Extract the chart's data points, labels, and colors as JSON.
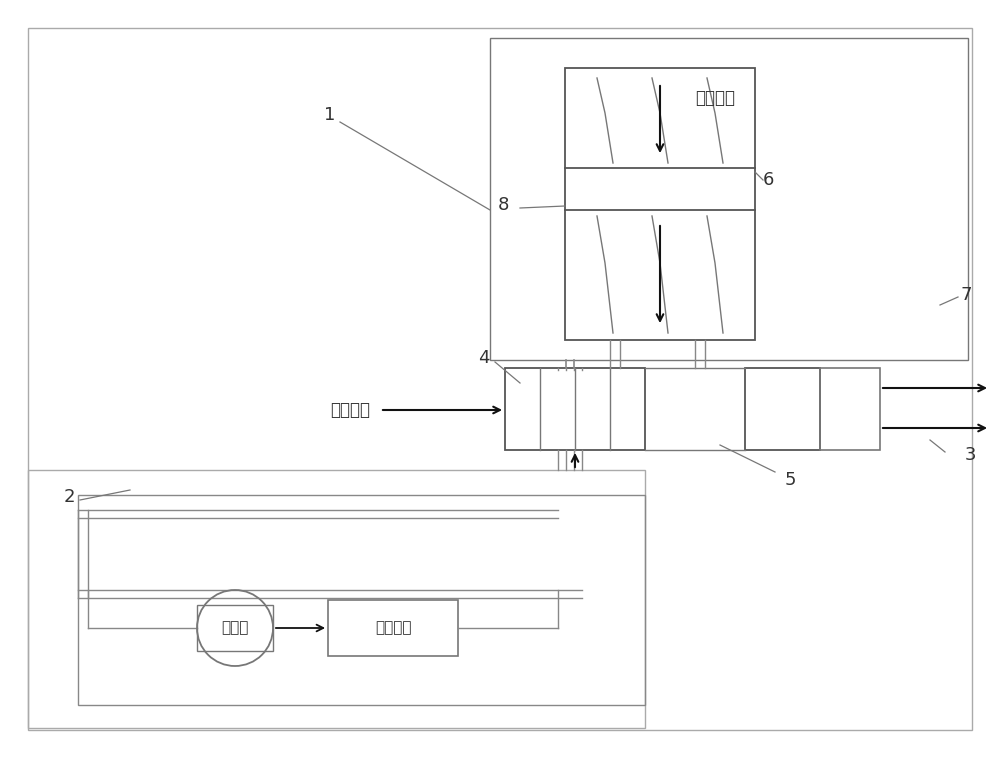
{
  "bg_color": "#ffffff",
  "lc": "#777777",
  "dc": "#111111",
  "tc": "#333333",
  "text_chongya": "冲压空气",
  "text_pump": "液体泵",
  "text_elec": "电子设备",
  "fs_label": 13,
  "fs_text": 12
}
